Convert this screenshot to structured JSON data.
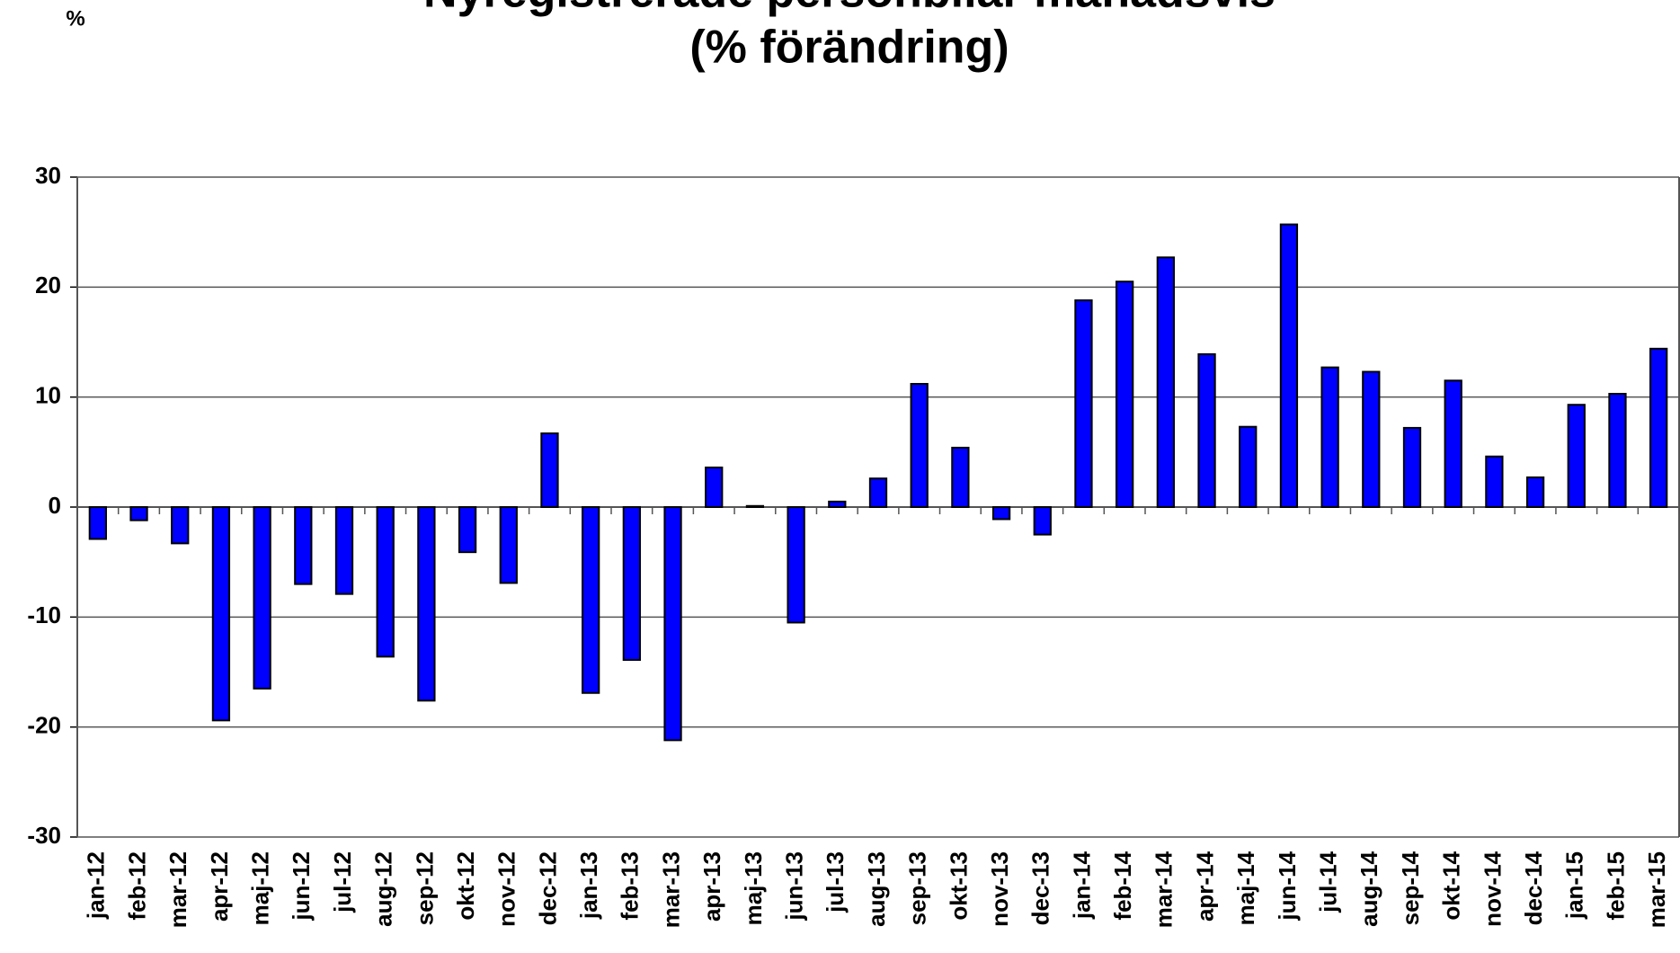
{
  "chart_data": {
    "type": "bar",
    "title": "Nyregistrerade personbilar månadsvis",
    "subtitle": "(% förändring)",
    "ylabel": "%",
    "categories": [
      "jan-12",
      "feb-12",
      "mar-12",
      "apr-12",
      "maj-12",
      "jun-12",
      "jul-12",
      "aug-12",
      "sep-12",
      "okt-12",
      "nov-12",
      "dec-12",
      "jan-13",
      "feb-13",
      "mar-13",
      "apr-13",
      "maj-13",
      "jun-13",
      "jul-13",
      "aug-13",
      "sep-13",
      "okt-13",
      "nov-13",
      "dec-13",
      "jan-14",
      "feb-14",
      "mar-14",
      "apr-14",
      "maj-14",
      "jun-14",
      "jul-14",
      "aug-14",
      "sep-14",
      "okt-14",
      "nov-14",
      "dec-14",
      "jan-15",
      "feb-15",
      "mar-15"
    ],
    "values": [
      -2.9,
      -1.2,
      -3.3,
      -19.4,
      -16.5,
      -7.0,
      -7.9,
      -13.6,
      -17.6,
      -4.1,
      -6.9,
      6.7,
      -16.9,
      -13.9,
      -21.2,
      3.6,
      0.1,
      -10.5,
      0.5,
      2.6,
      11.2,
      5.4,
      -1.1,
      -2.5,
      18.8,
      20.5,
      22.7,
      13.9,
      7.3,
      25.7,
      12.7,
      12.3,
      7.2,
      11.5,
      4.6,
      2.7,
      9.3,
      10.3,
      14.4
    ],
    "color": "#0000ff",
    "ylim": [
      -30,
      30
    ],
    "yticks": [
      -30,
      -20,
      -10,
      0,
      10,
      20,
      30
    ],
    "grid": true
  }
}
